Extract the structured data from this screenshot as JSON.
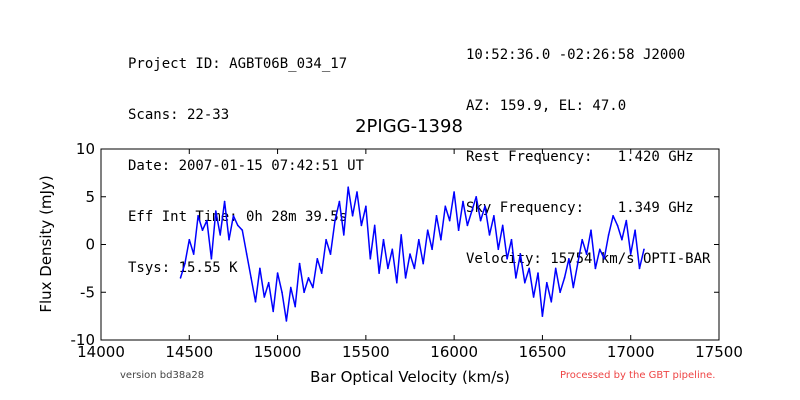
{
  "header": {
    "left": [
      "Project ID: AGBT06B_034_17",
      "Scans: 22-33",
      "Date: 2007-01-15 07:42:51 UT",
      "Eff Int Time: 0h 28m 39.5s",
      "Tsys: 15.55 K"
    ],
    "right": [
      "10:52:36.0 -02:26:58 J2000",
      "AZ: 159.9, EL: 47.0",
      "Rest Frequency:   1.420 GHz",
      "Sky Frequency:    1.349 GHz",
      "Velocity: 15754 km/s OPTI-BAR"
    ]
  },
  "footer": {
    "version": "version bd38a28",
    "pipeline": "Processed by the GBT pipeline."
  },
  "colors": {
    "series": "#0000ff",
    "pipeline_text": "#ee4444"
  },
  "chart_data": {
    "type": "line",
    "title": "2PIGG-1398",
    "xlabel": "Bar Optical Velocity (km/s)",
    "ylabel": "Flux Density (mJy)",
    "xlim": [
      14000,
      17500
    ],
    "ylim": [
      -10,
      10
    ],
    "xticks": [
      14000,
      14500,
      15000,
      15500,
      16000,
      16500,
      17000,
      17500
    ],
    "yticks": [
      -10,
      -5,
      0,
      5,
      10
    ],
    "grid": false,
    "series": [
      {
        "color": "#0000ff",
        "x": [
          14450,
          14475,
          14500,
          14525,
          14550,
          14575,
          14600,
          14625,
          14650,
          14675,
          14700,
          14725,
          14750,
          14775,
          14800,
          14825,
          14850,
          14875,
          14900,
          14925,
          14950,
          14975,
          15000,
          15025,
          15050,
          15075,
          15100,
          15125,
          15150,
          15175,
          15200,
          15225,
          15250,
          15275,
          15300,
          15325,
          15350,
          15375,
          15400,
          15425,
          15450,
          15475,
          15500,
          15525,
          15550,
          15575,
          15600,
          15625,
          15650,
          15675,
          15700,
          15725,
          15750,
          15775,
          15800,
          15825,
          15850,
          15875,
          15900,
          15925,
          15950,
          15975,
          16000,
          16025,
          16050,
          16075,
          16100,
          16125,
          16150,
          16175,
          16200,
          16225,
          16250,
          16275,
          16300,
          16325,
          16350,
          16375,
          16400,
          16425,
          16450,
          16475,
          16500,
          16525,
          16550,
          16575,
          16600,
          16625,
          16650,
          16675,
          16700,
          16725,
          16750,
          16775,
          16800,
          16825,
          16850,
          16875,
          16900,
          16925,
          16950,
          16975,
          17000,
          17025,
          17050,
          17075
        ],
        "y": [
          -3.5,
          -2.0,
          0.5,
          -1.0,
          3.0,
          1.5,
          2.5,
          -1.5,
          3.5,
          1.0,
          4.5,
          0.5,
          3.0,
          2.0,
          1.5,
          -1.0,
          -3.5,
          -6.0,
          -2.5,
          -5.5,
          -4.0,
          -7.0,
          -3.0,
          -5.0,
          -8.0,
          -4.5,
          -6.5,
          -2.0,
          -5.0,
          -3.5,
          -4.5,
          -1.5,
          -3.0,
          0.5,
          -1.0,
          2.5,
          4.5,
          1.0,
          6.0,
          3.0,
          5.5,
          2.0,
          4.0,
          -1.5,
          2.0,
          -3.0,
          0.5,
          -2.5,
          -0.5,
          -4.0,
          1.0,
          -3.5,
          -1.0,
          -2.5,
          0.5,
          -2.0,
          1.5,
          -0.5,
          3.0,
          0.5,
          4.0,
          2.5,
          5.5,
          1.5,
          4.5,
          2.0,
          3.5,
          5.0,
          2.5,
          4.0,
          1.0,
          3.0,
          -0.5,
          2.0,
          -1.5,
          0.5,
          -3.5,
          -1.0,
          -4.0,
          -2.5,
          -5.5,
          -3.0,
          -7.5,
          -4.0,
          -6.0,
          -2.5,
          -5.0,
          -3.5,
          -1.5,
          -4.5,
          -2.0,
          0.5,
          -1.0,
          1.5,
          -2.5,
          -0.5,
          -1.5,
          1.0,
          3.0,
          2.0,
          0.5,
          2.5,
          -1.0,
          1.5,
          -2.5,
          -0.5
        ]
      }
    ]
  }
}
